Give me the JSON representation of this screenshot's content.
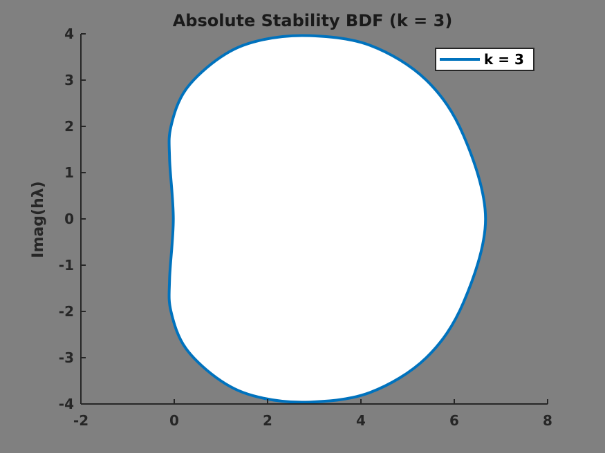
{
  "chart_data": {
    "type": "line",
    "title": "Absolute Stability BDF (k = 3)",
    "xlabel": "",
    "ylabel": "Imag(hλ)",
    "xlim": [
      -2,
      8
    ],
    "ylim": [
      -4,
      4
    ],
    "x_ticks": [
      -2,
      0,
      2,
      4,
      6,
      8
    ],
    "y_ticks": [
      -4,
      -3,
      -2,
      -1,
      0,
      1,
      2,
      3,
      4
    ],
    "x_tick_labels": [
      "-2",
      "0",
      "2",
      "4",
      "6",
      "8"
    ],
    "y_tick_labels": [
      "-4",
      "-3",
      "-2",
      "-1",
      "0",
      "1",
      "2",
      "3",
      "4"
    ],
    "grid": false,
    "legend_position": "top-right",
    "background_color": "#808080",
    "region_fill_color": "#ffffff",
    "series": [
      {
        "name": "k = 3",
        "color": "#0072BD",
        "description_points": {
          "x": [
            -0.02,
            -0.1,
            -0.07,
            0.25,
            1.0,
            1.8,
            2.9,
            4.2,
            5.4,
            6.2,
            6.67,
            6.2,
            5.4,
            4.2,
            2.9,
            1.8,
            1.0,
            0.25,
            -0.07,
            -0.1,
            -0.02
          ],
          "y": [
            0.0,
            1.3,
            2.0,
            2.8,
            3.5,
            3.85,
            3.96,
            3.75,
            3.0,
            1.8,
            0.0,
            -1.8,
            -3.0,
            -3.75,
            -3.96,
            -3.85,
            -3.5,
            -2.8,
            -2.0,
            -1.3,
            0.0
          ]
        }
      }
    ]
  }
}
